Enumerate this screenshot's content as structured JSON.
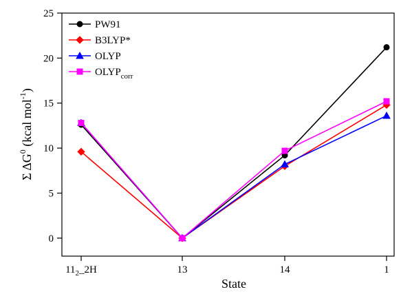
{
  "chart_data": {
    "type": "line",
    "categories": [
      {
        "base": "11",
        "sub": "2",
        "rest": "_2H"
      },
      {
        "base": "13",
        "sub": "",
        "rest": ""
      },
      {
        "base": "14",
        "sub": "",
        "rest": ""
      },
      {
        "base": "1",
        "sub": "",
        "rest": ""
      }
    ],
    "xlabel": "State",
    "ylabel": {
      "prefix": "Σ ΔG",
      "sup1": "0",
      "mid": " (kcal mol",
      "sup2": "-1",
      "suffix": ")"
    },
    "ylim": [
      -2,
      25
    ],
    "yticks": [
      0,
      5,
      10,
      15,
      20,
      25
    ],
    "legend_position": "top-left",
    "grid": false,
    "series": [
      {
        "name": "PW91",
        "name_sub": "",
        "color": "#000000",
        "marker": "circle",
        "values": [
          12.6,
          0.0,
          9.2,
          21.2
        ]
      },
      {
        "name": "B3LYP*",
        "name_sub": "",
        "color": "#ff0000",
        "marker": "diamond",
        "values": [
          9.6,
          0.0,
          8.0,
          14.8
        ]
      },
      {
        "name": "OLYP",
        "name_sub": "",
        "color": "#0000ff",
        "marker": "triangle",
        "values": [
          12.8,
          0.0,
          8.2,
          13.6
        ]
      },
      {
        "name": "OLYP",
        "name_sub": "corr",
        "color": "#ff00ff",
        "marker": "square",
        "values": [
          12.8,
          0.0,
          9.7,
          15.2
        ]
      }
    ]
  }
}
